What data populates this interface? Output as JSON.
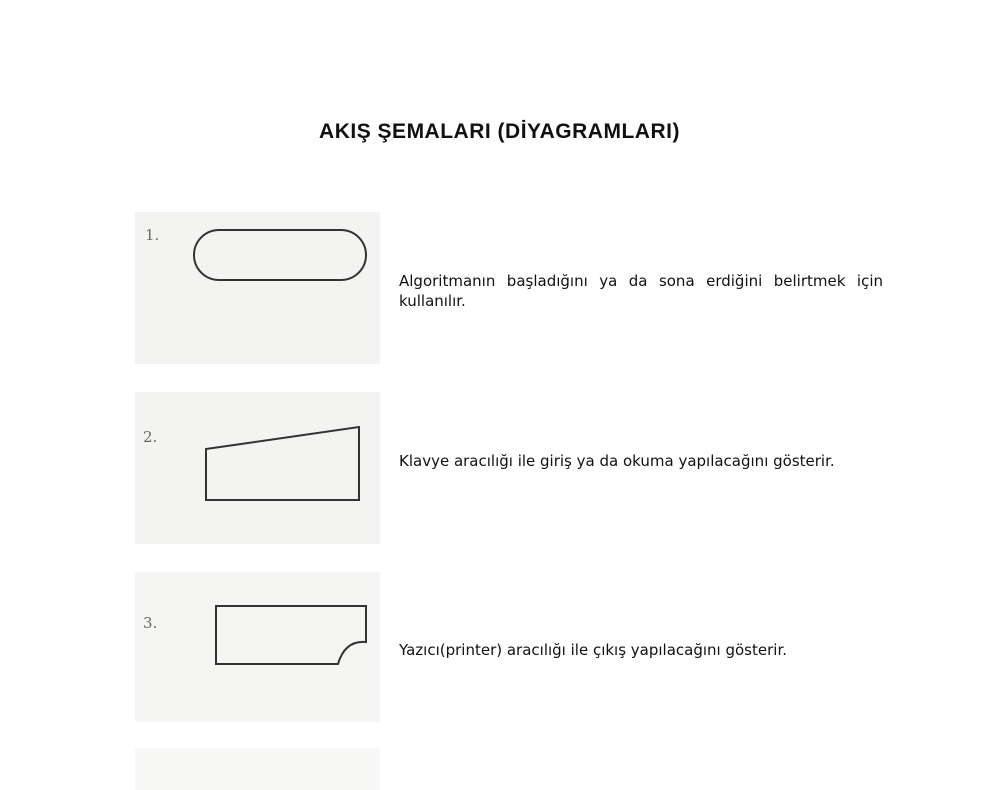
{
  "page": {
    "title": "AKIŞ ŞEMALARI (DİYAGRAMLARI)"
  },
  "items": [
    {
      "number": "1.",
      "shape": "terminal-rounded-rectangle",
      "description": "Algoritmanın başladığını ya da sona erdiğini belirtmek için kullanılır."
    },
    {
      "number": "2.",
      "shape": "manual-input-trapezoid",
      "description": "Klavye aracılığı ile giriş ya da okuma yapılacağını gösterir."
    },
    {
      "number": "3.",
      "shape": "printer-output-shape",
      "description": "Yazıcı(printer) aracılığı ile çıkış yapılacağını gösterir."
    }
  ]
}
